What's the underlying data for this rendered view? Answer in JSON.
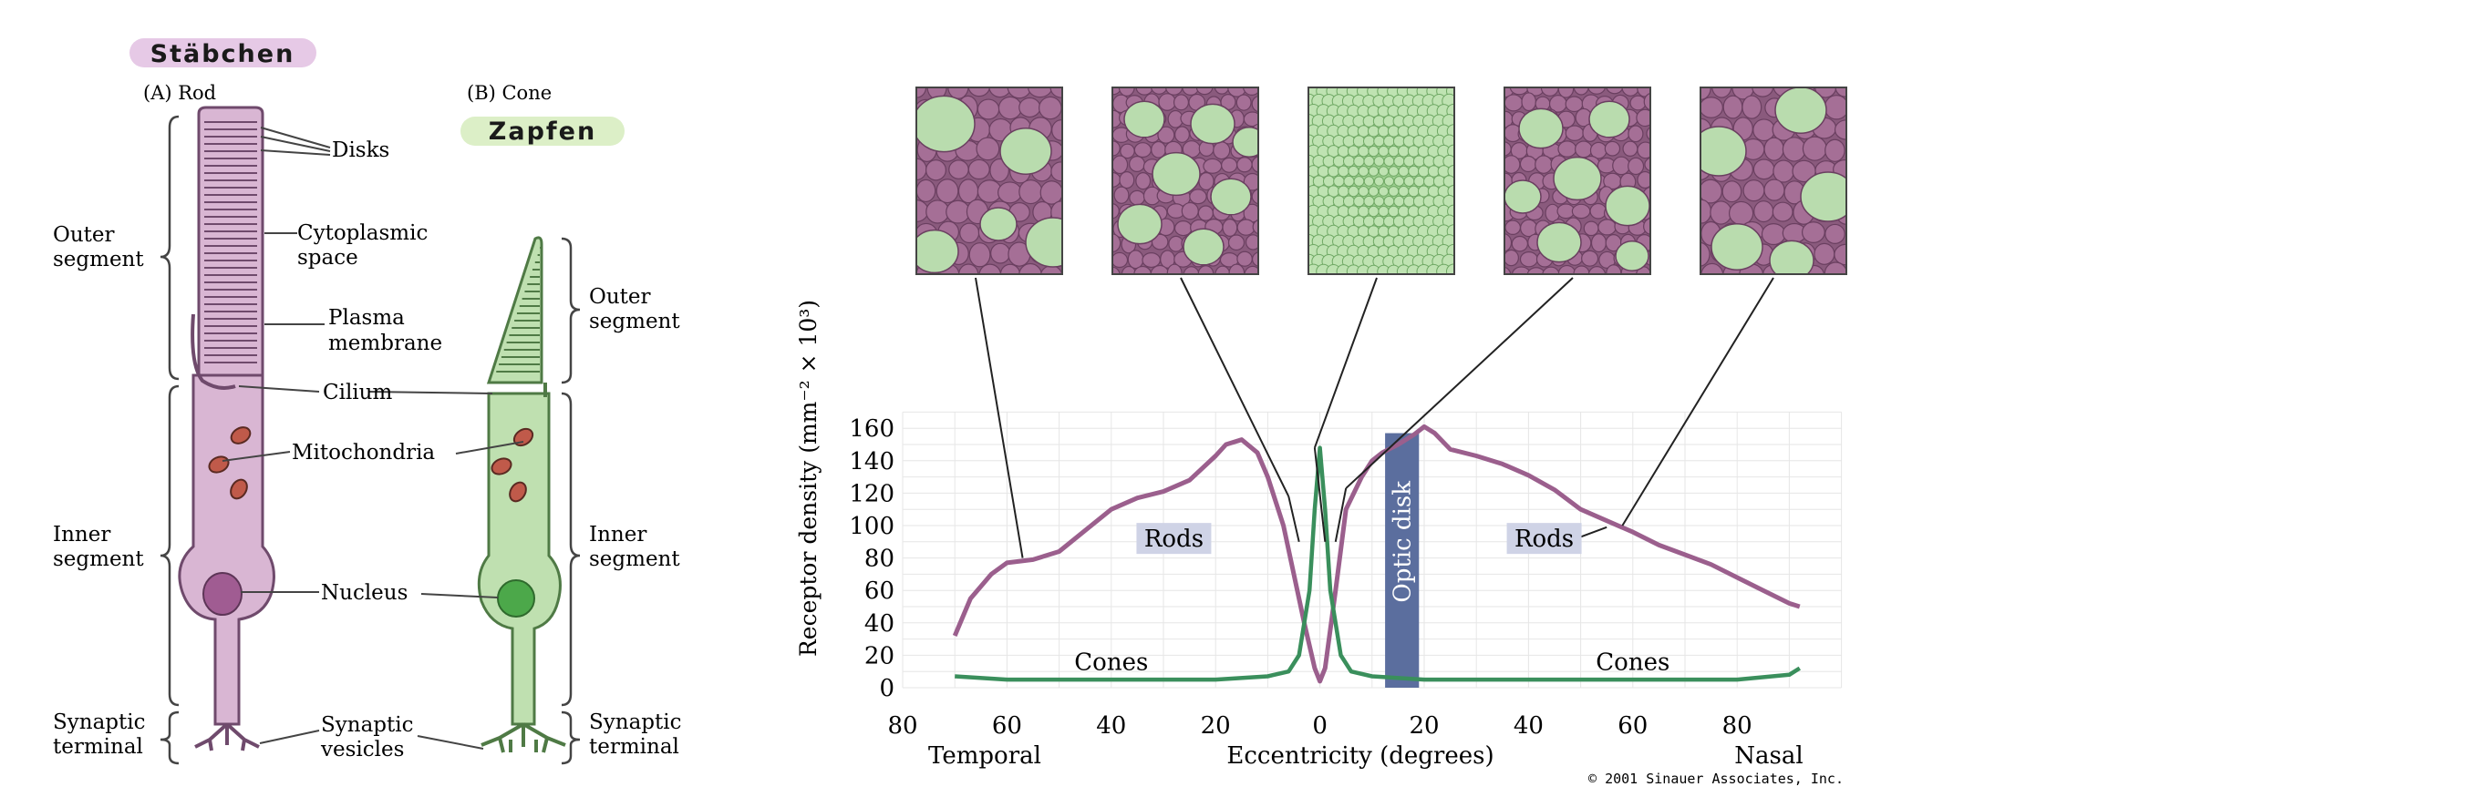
{
  "left_panel": {
    "handwritten_rod": "Stäbchen",
    "handwritten_cone": "Zapfen",
    "rod_title": "(A)  Rod",
    "cone_title": "(B)  Cone",
    "labels": {
      "disks": "Disks",
      "cytoplasmic": [
        "Cytoplasmic",
        "space"
      ],
      "plasma": [
        "Plasma",
        "membrane"
      ],
      "cilium": "Cilium",
      "mitochondria": "Mitochondria",
      "nucleus": "Nucleus",
      "synaptic_vesicles": [
        "Synaptic",
        "vesicles"
      ],
      "outer_segment": [
        "Outer",
        "segment"
      ],
      "inner_segment": [
        "Inner",
        "segment"
      ],
      "synaptic_terminal": [
        "Synaptic",
        "terminal"
      ]
    },
    "colors": {
      "rod": "#d9b6d3",
      "rod_dark": "#6f4a6c",
      "cone": "#bfe0b0",
      "cone_dark": "#4f7a45"
    }
  },
  "mosaic_colors": {
    "rod": "#a56f96",
    "cone": "#b9dcae",
    "border": "#444444"
  },
  "chart_data": {
    "type": "line",
    "xlabel": "Eccentricity (degrees)",
    "ylabel": "Receptor density (mm⁻² × 10³)",
    "x_end_labels": {
      "left": "Temporal",
      "right": "Nasal"
    },
    "xlim": [
      -80,
      100
    ],
    "ylim": [
      0,
      170
    ],
    "x_ticks": [
      -80,
      -60,
      -40,
      -20,
      0,
      20,
      40,
      60,
      80
    ],
    "x_tick_labels": [
      "80",
      "60",
      "40",
      "20",
      "0",
      "20",
      "40",
      "60",
      "80"
    ],
    "y_ticks": [
      0,
      20,
      40,
      60,
      80,
      100,
      120,
      140,
      160
    ],
    "grid": true,
    "series": [
      {
        "name": "Rods",
        "color": "#9b5f8d",
        "x": [
          -70,
          -67,
          -63,
          -60,
          -55,
          -50,
          -45,
          -40,
          -35,
          -30,
          -25,
          -20,
          -18,
          -15,
          -12,
          -10,
          -7,
          -5,
          -3,
          -1,
          0,
          1,
          3,
          5,
          8,
          10,
          12,
          15,
          18,
          20,
          22,
          25,
          30,
          35,
          40,
          45,
          50,
          55,
          60,
          65,
          70,
          75,
          80,
          85,
          90,
          92
        ],
        "y": [
          32,
          55,
          70,
          77,
          79,
          84,
          97,
          110,
          117,
          121,
          128,
          143,
          150,
          153,
          145,
          130,
          100,
          70,
          40,
          12,
          4,
          12,
          60,
          110,
          130,
          140,
          145,
          150,
          156,
          161,
          157,
          147,
          143,
          138,
          131,
          122,
          110,
          103,
          96,
          88,
          82,
          76,
          68,
          60,
          52,
          50
        ]
      },
      {
        "name": "Cones",
        "color": "#3a8f5c",
        "x": [
          -70,
          -60,
          -50,
          -40,
          -30,
          -20,
          -10,
          -6,
          -4,
          -2,
          -1,
          0,
          1,
          2,
          4,
          6,
          10,
          20,
          30,
          40,
          50,
          60,
          70,
          80,
          90,
          92
        ],
        "y": [
          7,
          5,
          5,
          5,
          5,
          5,
          7,
          10,
          20,
          60,
          110,
          148,
          110,
          60,
          20,
          10,
          7,
          5,
          5,
          5,
          5,
          5,
          5,
          5,
          8,
          12
        ]
      }
    ],
    "annotations": {
      "optic_disk": {
        "label": "Optic disk",
        "x_start": 12.5,
        "x_end": 19,
        "color": "#5b6e9e"
      },
      "rods_label_left": {
        "text": "Rods",
        "x": -28,
        "y": 87
      },
      "rods_label_right": {
        "text": "Rods",
        "x": 43,
        "y": 87
      },
      "cones_label_left": {
        "text": "Cones",
        "x": -40,
        "y": 11
      },
      "cones_label_right": {
        "text": "Cones",
        "x": 60,
        "y": 11
      }
    },
    "credit": "© 2001 Sinauer Associates, Inc."
  }
}
